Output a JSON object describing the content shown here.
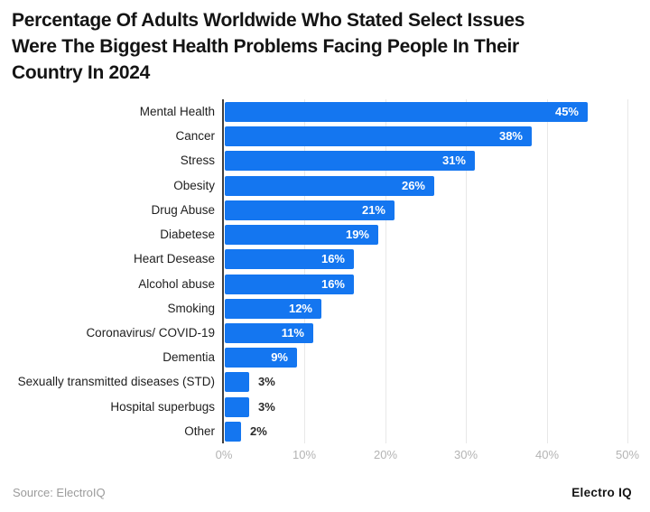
{
  "title": {
    "lines": [
      "Percentage Of Adults Worldwide Who Stated Select Issues",
      "Were The Biggest Health Problems Facing People In Their",
      "Country In 2024"
    ]
  },
  "chart_data": {
    "type": "bar",
    "orientation": "horizontal",
    "title": "Percentage Of Adults Worldwide Who Stated Select Issues Were The Biggest Health Problems Facing People In Their Country In 2024",
    "categories": [
      "Mental Health",
      "Cancer",
      "Stress",
      "Obesity",
      "Drug Abuse",
      "Diabetese",
      "Heart Desease",
      "Alcohol abuse",
      "Smoking",
      "Coronavirus/ COVID-19",
      "Dementia",
      "Sexually transmitted diseases (STD)",
      "Hospital superbugs",
      "Other"
    ],
    "values": [
      45,
      38,
      31,
      26,
      21,
      19,
      16,
      16,
      12,
      11,
      9,
      3,
      3,
      2
    ],
    "value_labels": [
      "45%",
      "38%",
      "31%",
      "26%",
      "21%",
      "19%",
      "16%",
      "16%",
      "12%",
      "11%",
      "9%",
      "3%",
      "3%",
      "2%"
    ],
    "xlim": [
      0,
      50
    ],
    "x_tick_values": [
      0,
      10,
      20,
      30,
      40,
      50
    ],
    "x_ticks": [
      "0%",
      "10%",
      "20%",
      "30%",
      "40%",
      "50%"
    ],
    "grid": true,
    "legend": "none",
    "bar_color": "#1476f0",
    "inside_label_color": "#ffffff",
    "outside_label_color": "#2b2b2b",
    "inside_label_min_value": 9
  },
  "footer": {
    "source": "Source: ElectroIQ",
    "brand": "Electro IQ"
  }
}
